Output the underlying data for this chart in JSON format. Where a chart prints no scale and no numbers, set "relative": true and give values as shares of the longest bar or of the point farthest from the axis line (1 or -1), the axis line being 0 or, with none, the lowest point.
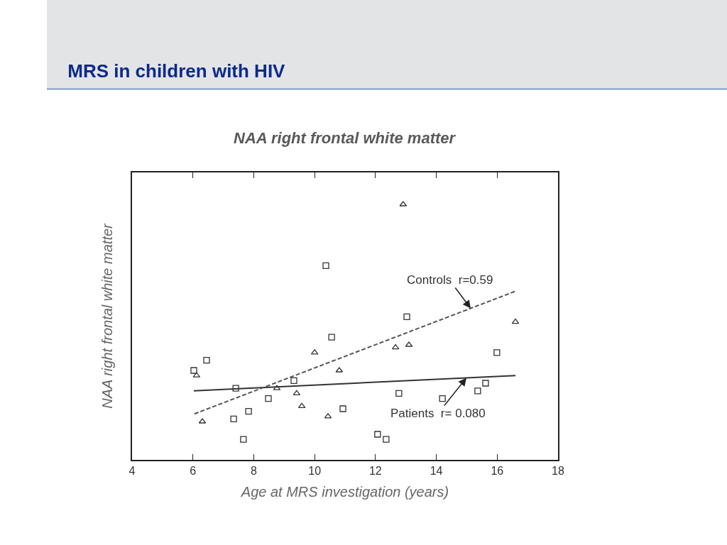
{
  "chart_data": {
    "type": "scatter",
    "title": "MRS in children with HIV",
    "subtitle": "NAA right frontal white matter",
    "xlabel": "Age at MRS investigation (years)",
    "ylabel": "NAA right frontal white matter",
    "relative": true,
    "xlim": [
      4,
      18
    ],
    "xticks": [
      4,
      6,
      8,
      10,
      12,
      14,
      16,
      18
    ],
    "tick_labels": "x",
    "series": [
      {
        "marker": "square",
        "color": "#333333",
        "x": [
          6.03,
          6.45,
          7.41,
          7.34,
          7.83,
          7.66,
          8.48,
          9.32,
          10.37,
          10.56,
          10.93,
          13.03,
          12.77,
          14.2,
          15.36,
          15.62,
          15.99,
          12.07,
          12.35
        ],
        "values": [
          0.35,
          0.39,
          0.28,
          0.16,
          0.19,
          0.08,
          0.24,
          0.31,
          0.76,
          0.48,
          0.2,
          0.56,
          0.26,
          0.24,
          0.27,
          0.3,
          0.42,
          0.1,
          0.08
        ]
      },
      {
        "marker": "triangle",
        "color": "#333333",
        "x": [
          6.12,
          6.31,
          8.76,
          9.41,
          9.58,
          10.0,
          10.44,
          10.81,
          12.91,
          12.66,
          13.1,
          16.6
        ],
        "values": [
          0.33,
          0.15,
          0.28,
          0.26,
          0.21,
          0.42,
          0.17,
          0.35,
          1.0,
          0.44,
          0.45,
          0.54
        ]
      },
      {
        "type": "line",
        "line_style": "solid",
        "color": "#333333",
        "x": [
          6.03,
          16.6
        ],
        "values": [
          0.27,
          0.33
        ]
      },
      {
        "type": "line",
        "line_style": "dashed",
        "color": "#555555",
        "x": [
          6.05,
          16.6
        ],
        "values": [
          0.18,
          0.66
        ]
      }
    ],
    "annotations": [
      {
        "text": "Controls  r=0.59",
        "x": 15.13,
        "y": 0.593
      },
      {
        "text": "Patients  r= 0.080",
        "x": 14.99,
        "y": 0.321
      }
    ]
  }
}
